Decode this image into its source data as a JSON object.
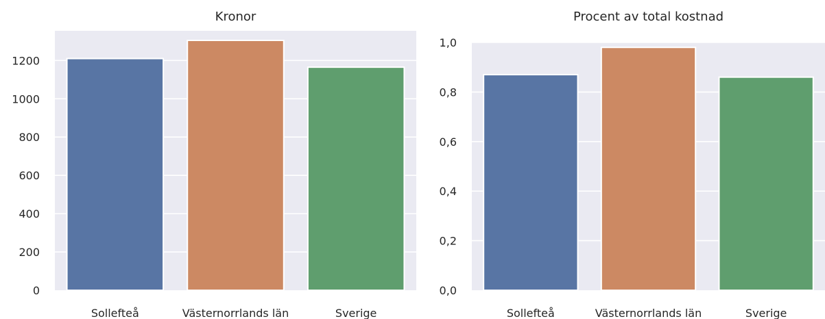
{
  "chart_data": [
    {
      "type": "bar",
      "title": "Kronor",
      "categories": [
        "Sollefteå",
        "Västernorrlands län",
        "Sverige"
      ],
      "values": [
        1210,
        1305,
        1165
      ],
      "ylim": [
        0,
        1355
      ],
      "yticks": [
        0,
        200,
        400,
        600,
        800,
        1000,
        1200
      ],
      "ytick_labels": [
        "0",
        "200",
        "400",
        "600",
        "800",
        "1000",
        "1200"
      ],
      "grid": true,
      "colors": [
        "#5875a4",
        "#cc8963",
        "#5f9e6e"
      ]
    },
    {
      "type": "bar",
      "title": "Procent av total kostnad",
      "categories": [
        "Sollefteå",
        "Västernorrlands län",
        "Sverige"
      ],
      "values": [
        0.87,
        0.98,
        0.86
      ],
      "ylim": [
        0,
        1.0
      ],
      "yticks": [
        0.0,
        0.2,
        0.4,
        0.6,
        0.8,
        1.0
      ],
      "ytick_labels": [
        "0,0",
        "0,2",
        "0,4",
        "0,6",
        "0,8",
        "1,0"
      ],
      "grid": true,
      "colors": [
        "#5875a4",
        "#cc8963",
        "#5f9e6e"
      ]
    }
  ]
}
